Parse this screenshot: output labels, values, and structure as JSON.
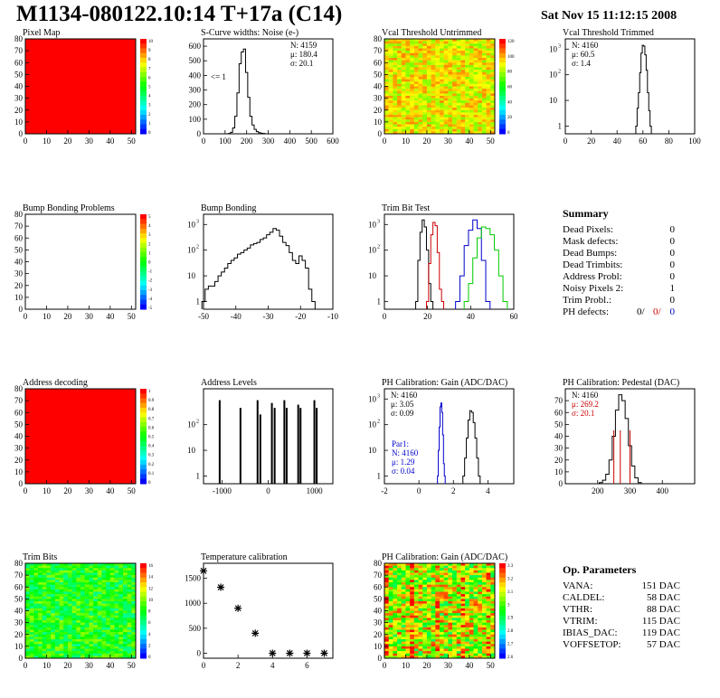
{
  "header": {
    "title": "M1134-080122.10:14 T+17a (C14)",
    "date": "Sat Nov 15 11:12:15 2008"
  },
  "colors": {
    "black": "#000000",
    "red": "#cc0000",
    "blue": "#0000cc",
    "green": "#00cc00",
    "map_red": "#ff0000"
  },
  "summary": {
    "title": "Summary",
    "rows": [
      {
        "label": "Dead Pixels:",
        "value": "0"
      },
      {
        "label": "Mask defects:",
        "value": "0"
      },
      {
        "label": "Dead Bumps:",
        "value": "0"
      },
      {
        "label": "Dead Trimbits:",
        "value": "0"
      },
      {
        "label": "Address Probl:",
        "value": "0"
      },
      {
        "label": "Noisy Pixels 2:",
        "value": "1"
      },
      {
        "label": "Trim Probl.:",
        "value": "0"
      }
    ],
    "ph_label": "PH defects:",
    "ph_values": [
      "0/",
      "0/",
      "0"
    ]
  },
  "op_params": {
    "title": "Op. Parameters",
    "rows": [
      {
        "label": "VANA:",
        "value": "151 DAC"
      },
      {
        "label": "CALDEL:",
        "value": "58 DAC"
      },
      {
        "label": "VTHR:",
        "value": "88 DAC"
      },
      {
        "label": "VTRIM:",
        "value": "115 DAC"
      },
      {
        "label": "IBIAS_DAC:",
        "value": "119 DAC"
      },
      {
        "label": "VOFFSETOP:",
        "value": "57 DAC"
      }
    ]
  },
  "chart_data": [
    {
      "type": "heatmap",
      "title": "Pixel Map",
      "xlim": [
        0,
        52
      ],
      "ylim": [
        0,
        80
      ],
      "xticks": [
        0,
        10,
        20,
        30,
        40,
        50
      ],
      "yticks": [
        0,
        10,
        20,
        30,
        40,
        50,
        60,
        70,
        80
      ],
      "fill": "uniform",
      "palette_ticks": [
        "10",
        "9",
        "8",
        "7",
        "6",
        "5",
        "4",
        "3",
        "2",
        "1",
        "0"
      ]
    },
    {
      "type": "line",
      "title": "S-Curve widths: Noise (e-)",
      "xlim": [
        0,
        600
      ],
      "ylim": [
        0,
        650
      ],
      "xticks": [
        0,
        100,
        200,
        300,
        400,
        500,
        600
      ],
      "yticks": [
        0,
        100,
        200,
        300,
        400,
        500,
        600
      ],
      "log": false,
      "annotation": "<= 1",
      "stats": [
        "N: 4159",
        "μ: 180.4",
        "σ: 20.1"
      ],
      "series": [
        {
          "color": "black",
          "x": [
            120,
            130,
            140,
            150,
            160,
            170,
            180,
            190,
            200,
            210,
            220,
            230,
            240,
            250,
            260,
            270,
            280
          ],
          "y": [
            2,
            10,
            40,
            120,
            280,
            480,
            560,
            580,
            420,
            250,
            120,
            60,
            30,
            15,
            8,
            4,
            2
          ]
        }
      ]
    },
    {
      "type": "heatmap",
      "title": "Vcal Threshold Untrimmed",
      "xlim": [
        0,
        52
      ],
      "ylim": [
        0,
        80
      ],
      "xticks": [
        0,
        10,
        20,
        30,
        40,
        50
      ],
      "yticks": [
        0,
        10,
        20,
        30,
        40,
        50,
        60,
        70,
        80
      ],
      "fill": "noise_warm",
      "palette_ticks": [
        "120",
        "100",
        "80",
        "60",
        "40",
        "20",
        "0"
      ]
    },
    {
      "type": "line",
      "title": "Vcal Threshold Trimmed",
      "xlim": [
        0,
        100
      ],
      "ylim": [
        0.5,
        2500
      ],
      "log": true,
      "xticks": [
        0,
        20,
        40,
        60,
        80,
        100
      ],
      "yticks": [
        1,
        10,
        100,
        1000
      ],
      "stats": [
        "N: 4160",
        "μ: 60.5",
        "σ: 1.4"
      ],
      "series": [
        {
          "color": "black",
          "x": [
            55,
            56,
            57,
            58,
            59,
            60,
            61,
            62,
            63,
            64,
            65,
            66
          ],
          "y": [
            1,
            5,
            20,
            120,
            700,
            1400,
            1300,
            600,
            150,
            20,
            4,
            1
          ]
        }
      ]
    },
    {
      "type": "heatmap",
      "title": "Bump Bonding Problems",
      "xlim": [
        0,
        52
      ],
      "ylim": [
        0,
        80
      ],
      "xticks": [
        0,
        10,
        20,
        30,
        40,
        50
      ],
      "yticks": [
        0,
        10,
        20,
        30,
        40,
        50,
        60,
        70,
        80
      ],
      "fill": "empty",
      "palette_ticks": [
        "5",
        "4",
        "3",
        "2",
        "1",
        "0",
        "-1",
        "-2",
        "-3",
        "-4",
        "-5"
      ]
    },
    {
      "type": "line",
      "title": "Bump Bonding",
      "xlim": [
        -50,
        -10
      ],
      "ylim": [
        0.5,
        2500
      ],
      "log": true,
      "xticks": [
        -50,
        -40,
        -30,
        -20,
        -10
      ],
      "yticks": [
        1,
        10,
        100,
        1000
      ],
      "series": [
        {
          "color": "black",
          "x": [
            -50,
            -49,
            -48,
            -47,
            -46,
            -45,
            -44,
            -43,
            -42,
            -41,
            -40,
            -39,
            -38,
            -37,
            -36,
            -35,
            -34,
            -33,
            -32,
            -31,
            -30,
            -29,
            -28,
            -27,
            -26,
            -25,
            -24,
            -23,
            -22,
            -21,
            -20,
            -19,
            -18,
            -17,
            -16
          ],
          "y": [
            1,
            3,
            4,
            4,
            6,
            10,
            14,
            20,
            30,
            40,
            50,
            70,
            80,
            100,
            120,
            160,
            180,
            200,
            260,
            300,
            400,
            500,
            700,
            600,
            350,
            200,
            150,
            80,
            40,
            30,
            60,
            40,
            20,
            3,
            1
          ]
        }
      ]
    },
    {
      "type": "line",
      "title": "Trim Bit Test",
      "xlim": [
        0,
        60
      ],
      "ylim": [
        0.5,
        2500
      ],
      "log": true,
      "xticks": [
        0,
        20,
        40,
        60
      ],
      "yticks": [
        1,
        10,
        100,
        1000
      ],
      "series": [
        {
          "color": "black",
          "x": [
            15,
            16,
            17,
            18,
            19,
            20,
            21,
            22
          ],
          "y": [
            1,
            40,
            500,
            1500,
            800,
            100,
            5,
            1
          ]
        },
        {
          "color": "red",
          "x": [
            20,
            21,
            22,
            23,
            24,
            25,
            26,
            27
          ],
          "y": [
            1,
            30,
            400,
            1200,
            900,
            80,
            3,
            1
          ]
        },
        {
          "color": "blue",
          "x": [
            34,
            36,
            38,
            40,
            42,
            44,
            46,
            48
          ],
          "y": [
            1,
            10,
            150,
            600,
            1500,
            700,
            40,
            1
          ]
        },
        {
          "color": "green",
          "x": [
            38,
            40,
            42,
            44,
            46,
            48,
            50,
            52,
            54,
            56
          ],
          "y": [
            1,
            5,
            50,
            300,
            800,
            700,
            400,
            100,
            10,
            1
          ]
        }
      ]
    },
    {
      "type": "heatmap",
      "title": "Address decoding",
      "xlim": [
        0,
        52
      ],
      "ylim": [
        0,
        80
      ],
      "xticks": [
        0,
        10,
        20,
        30,
        40,
        50
      ],
      "yticks": [
        0,
        10,
        20,
        30,
        40,
        50,
        60,
        70,
        80
      ],
      "fill": "uniform",
      "palette_ticks": [
        "1",
        "0.9",
        "0.8",
        "0.7",
        "0.6",
        "0.5",
        "0.4",
        "0.3",
        "0.2",
        "0.1",
        "0"
      ]
    },
    {
      "type": "bar",
      "title": "Address Levels",
      "xlim": [
        -1400,
        1400
      ],
      "ylim": [
        0.5,
        2500
      ],
      "log": true,
      "xticks": [
        -1000,
        0,
        1000
      ],
      "yticks": [
        1,
        10,
        100
      ],
      "categories": [
        -1050,
        -600,
        -230,
        -170,
        80,
        140,
        350,
        400,
        650,
        700,
        1000,
        1050
      ],
      "values": [
        900,
        450,
        900,
        250,
        700,
        450,
        900,
        450,
        600,
        450,
        900,
        450
      ]
    },
    {
      "type": "line",
      "title": "PH Calibration: Gain (ADC/DAC)",
      "xlim": [
        -2,
        5.5
      ],
      "ylim": [
        0.5,
        2500
      ],
      "log": true,
      "xticks": [
        -2,
        0,
        2,
        4
      ],
      "yticks": [
        1,
        10,
        100,
        1000
      ],
      "stats": [
        "N: 4160",
        "μ: 3.05",
        "σ: 0.09"
      ],
      "stats2": [
        "Par1:",
        "N: 4160",
        "μ: 1.29",
        "σ: 0.04"
      ],
      "series": [
        {
          "color": "black",
          "x": [
            2.6,
            2.7,
            2.8,
            2.9,
            3.0,
            3.1,
            3.2,
            3.3,
            3.4,
            3.5
          ],
          "y": [
            1,
            5,
            30,
            150,
            350,
            300,
            120,
            30,
            5,
            1
          ]
        },
        {
          "color": "blue",
          "x": [
            1.1,
            1.15,
            1.2,
            1.25,
            1.3,
            1.35,
            1.4,
            1.45,
            1.5
          ],
          "y": [
            1,
            10,
            80,
            500,
            700,
            300,
            40,
            3,
            1
          ]
        }
      ]
    },
    {
      "type": "line",
      "title": "PH Calibration: Pedestal (DAC)",
      "xlim": [
        100,
        500
      ],
      "ylim": [
        0,
        80
      ],
      "log": false,
      "xticks": [
        200,
        300,
        400
      ],
      "yticks": [
        0,
        10,
        20,
        30,
        40,
        50,
        60,
        70
      ],
      "stats": [
        "N: 4160",
        "μ: 269.2",
        "σ: 20.1"
      ],
      "series": [
        {
          "color": "black",
          "x": [
            210,
            220,
            230,
            240,
            250,
            260,
            270,
            280,
            290,
            300,
            310,
            320,
            330
          ],
          "y": [
            1,
            3,
            8,
            20,
            40,
            62,
            75,
            70,
            55,
            32,
            15,
            5,
            1
          ]
        }
      ]
    },
    {
      "type": "heatmap",
      "title": "Trim Bits",
      "xlim": [
        0,
        52
      ],
      "ylim": [
        0,
        80
      ],
      "xticks": [
        0,
        10,
        20,
        30,
        40,
        50
      ],
      "yticks": [
        0,
        10,
        20,
        30,
        40,
        50,
        60,
        70,
        80
      ],
      "fill": "noise_mid",
      "palette_ticks": [
        "16",
        "14",
        "12",
        "10",
        "8",
        "6",
        "4",
        "2",
        "0"
      ]
    },
    {
      "type": "scatter",
      "title": "Temperature calibration",
      "xlim": [
        0,
        7.5
      ],
      "ylim": [
        -100,
        1800
      ],
      "xticks": [
        0,
        2,
        4,
        6
      ],
      "yticks": [
        0,
        500,
        1000,
        1500
      ],
      "x": [
        0,
        1,
        2,
        3,
        4,
        5,
        6,
        7
      ],
      "y": [
        1650,
        1320,
        900,
        400,
        0,
        0,
        0,
        0
      ]
    },
    {
      "type": "heatmap",
      "title": "PH Calibration: Gain (ADC/DAC)",
      "xlim": [
        0,
        52
      ],
      "ylim": [
        0,
        80
      ],
      "xticks": [
        0,
        10,
        20,
        30,
        40,
        50
      ],
      "yticks": [
        0,
        10,
        20,
        30,
        40,
        50,
        60,
        70,
        80
      ],
      "fill": "noise_cols",
      "palette_ticks": [
        "3.3",
        "3.2",
        "3.1",
        "3",
        "2.9",
        "2.8",
        "2.7",
        "2.6"
      ]
    }
  ]
}
